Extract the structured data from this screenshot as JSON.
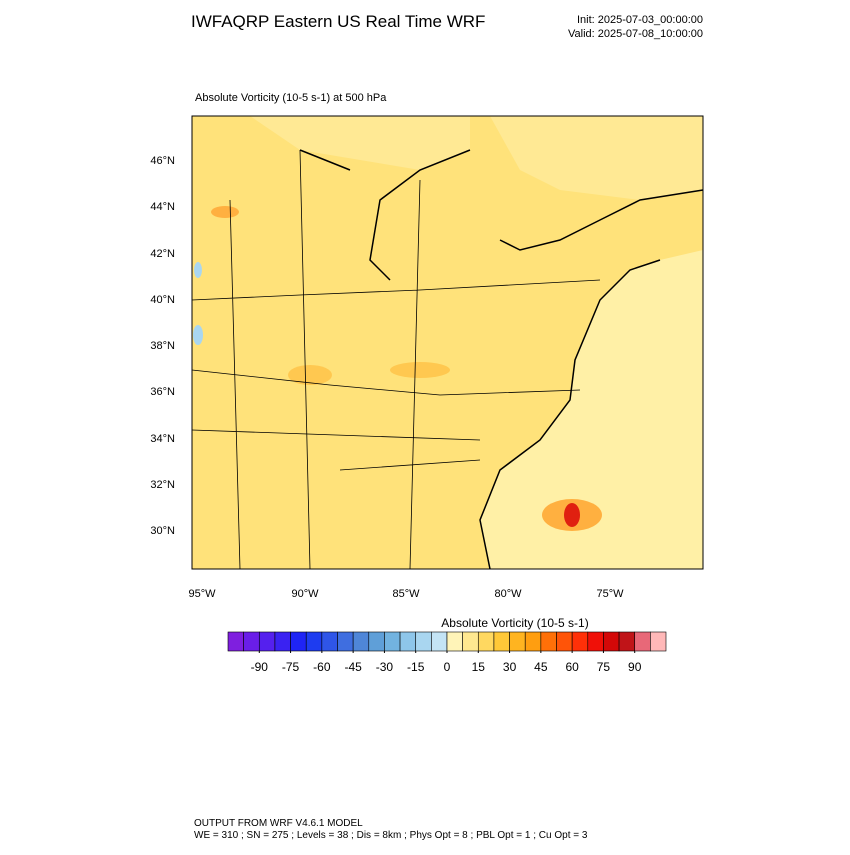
{
  "header": {
    "title": "IWFAQRP Eastern US Real Time WRF",
    "init": "Init: 2025-07-03_00:00:00",
    "valid": "Valid: 2025-07-08_10:00:00"
  },
  "map": {
    "subtitle": "Absolute Vorticity   (10-5 s-1)     at   500 hPa",
    "lat_labels": [
      "46°N",
      "44°N",
      "42°N",
      "40°N",
      "38°N",
      "36°N",
      "34°N",
      "32°N",
      "30°N"
    ],
    "lon_labels": [
      "95°W",
      "90°W",
      "85°W",
      "80°W",
      "75°W"
    ]
  },
  "colorbar": {
    "title": "Absolute Vorticity  (10-5 s-1)",
    "lim": [
      -105,
      105
    ],
    "ticks": [
      -90,
      -75,
      -60,
      -45,
      -30,
      -15,
      0,
      15,
      30,
      45,
      60,
      75,
      90
    ],
    "colors": [
      "#7f1fdf",
      "#6a1ee8",
      "#5520ee",
      "#3a22f2",
      "#1f24f5",
      "#1e3cf0",
      "#2f55e8",
      "#3f6ee0",
      "#4f86d8",
      "#5f9fd8",
      "#72b3e0",
      "#8ec6ea",
      "#a9d6f0",
      "#c4e4f5",
      "#fff4b8",
      "#ffe890",
      "#ffd860",
      "#ffc838",
      "#ffb420",
      "#ff9e10",
      "#ff7008",
      "#ff5408",
      "#ff3008",
      "#f01008",
      "#d40808",
      "#c01418",
      "#e86878",
      "#ffb8b8"
    ]
  },
  "footer": {
    "line1": "OUTPUT FROM WRF V4.6.1 MODEL",
    "line2": "WE = 310 ; SN = 275 ; Levels = 38 ; Dis = 8km ; Phys Opt = 8 ; PBL Opt = 1 ; Cu Opt = 3"
  }
}
